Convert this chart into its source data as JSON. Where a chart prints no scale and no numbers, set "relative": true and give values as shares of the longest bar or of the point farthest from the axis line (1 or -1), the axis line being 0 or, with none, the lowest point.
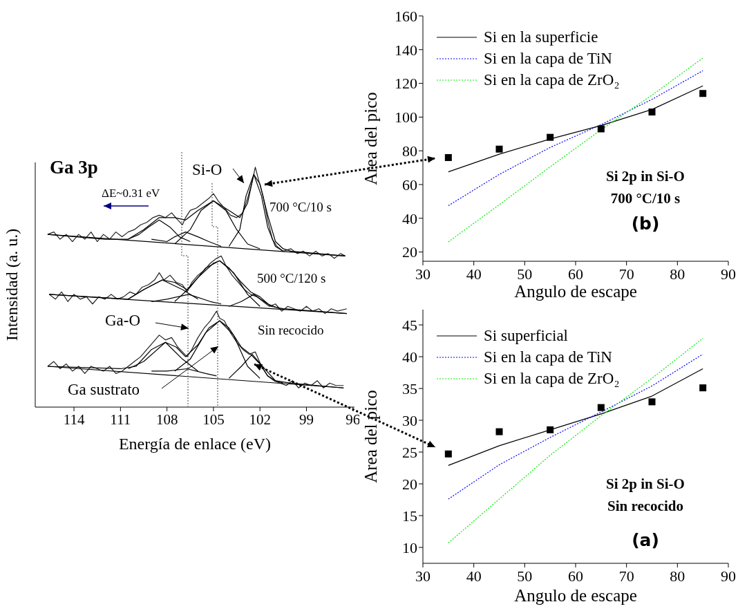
{
  "chart_data": [
    {
      "type": "line",
      "relative": true,
      "xlabel": "Energía de enlace (eV)",
      "ylabel": "Intensidad (a. u.)",
      "xlim": [
        116.5,
        95.9
      ],
      "xticks": [
        114,
        111,
        108,
        105,
        102,
        99,
        96
      ],
      "tick_labels": "x",
      "annotations": [
        "Ga 3p",
        "Si-O",
        "ΔE~0.31 eV",
        "700 °C/10 s",
        "500 °C/120 s",
        "Ga-O",
        "Sin recocido",
        "Ga sustrato"
      ],
      "series": [
        {
          "color": "#222222",
          "x": [
            115.7,
            115.3,
            114.9,
            114.5,
            114.1,
            113.7,
            113.3,
            112.9,
            112.5,
            112.1,
            111.7,
            111.3,
            110.9,
            110.5,
            110.1,
            109.7,
            109.3,
            108.9,
            108.5,
            108.1,
            107.7,
            107.3,
            107.0,
            106.8,
            106.5,
            106.1,
            105.7,
            105.3,
            105.0,
            104.7,
            104.3,
            103.9,
            103.5,
            103.1,
            102.8,
            102.5,
            102.3,
            102.1,
            101.8,
            101.5,
            101.2,
            100.9,
            100.5,
            100.0,
            99.6,
            99.2,
            98.8,
            98.4,
            98.0,
            97.6,
            97.2,
            96.8,
            96.5
          ],
          "values": [
            0.72,
            0.73,
            0.7,
            0.72,
            0.69,
            0.72,
            0.7,
            0.73,
            0.69,
            0.72,
            0.7,
            0.73,
            0.71,
            0.73,
            0.74,
            0.76,
            0.77,
            0.79,
            0.8,
            0.79,
            0.81,
            0.78,
            0.76,
            0.79,
            0.82,
            0.83,
            0.85,
            0.87,
            0.89,
            0.86,
            0.83,
            0.8,
            0.79,
            0.81,
            0.87,
            0.94,
            1.0,
            0.95,
            0.88,
            0.78,
            0.7,
            0.67,
            0.65,
            0.66,
            0.64,
            0.65,
            0.63,
            0.65,
            0.63,
            0.64,
            0.62,
            0.64,
            0.63
          ]
        },
        {
          "color": "#000000",
          "x": [
            115.7,
            112,
            110.5,
            109.5,
            108.5,
            107.5,
            106.8,
            106,
            105,
            104,
            103.3,
            102.8,
            102.4,
            102,
            101.5,
            101,
            100.5,
            100,
            96.5
          ],
          "values": [
            0.72,
            0.7,
            0.7,
            0.74,
            0.79,
            0.79,
            0.78,
            0.82,
            0.86,
            0.82,
            0.79,
            0.85,
            0.97,
            0.93,
            0.8,
            0.69,
            0.66,
            0.65,
            0.63
          ]
        },
        {
          "color": "#000000",
          "x": [
            115.7,
            96.5
          ],
          "values": [
            0.72,
            0.63
          ]
        },
        {
          "color": "#000000",
          "x": [
            110.5,
            109.8,
            109.2,
            108.5,
            107.8,
            107.2,
            106.5
          ],
          "values": [
            0.7,
            0.72,
            0.75,
            0.78,
            0.75,
            0.71,
            0.69
          ]
        },
        {
          "color": "#000000",
          "x": [
            109,
            108,
            107.5,
            106.8,
            106,
            105.3,
            104.5
          ],
          "values": [
            0.7,
            0.69,
            0.71,
            0.73,
            0.71,
            0.69,
            0.67
          ]
        },
        {
          "color": "#000000",
          "x": [
            107.5,
            106.5,
            105.8,
            105,
            104.2,
            103.5,
            102.8,
            102
          ],
          "values": [
            0.68,
            0.74,
            0.82,
            0.86,
            0.82,
            0.74,
            0.68,
            0.66
          ]
        },
        {
          "color": "#000000",
          "x": [
            104,
            103.3,
            102.9,
            102.4,
            101.9,
            101.5,
            101,
            100.5
          ],
          "values": [
            0.67,
            0.74,
            0.88,
            0.97,
            0.88,
            0.75,
            0.67,
            0.65
          ]
        },
        {
          "color": "#222222",
          "x": [
            115.6,
            115.2,
            114.8,
            114.4,
            114,
            113.6,
            113.2,
            112.8,
            112.4,
            112,
            111.6,
            111.2,
            110.8,
            110.4,
            110,
            109.6,
            109.2,
            108.8,
            108.5,
            108.2,
            107.8,
            107.4,
            107,
            106.7,
            106.4,
            106,
            105.6,
            105.2,
            104.8,
            104.5,
            104.2,
            103.8,
            103.4,
            103,
            102.6,
            102.2,
            101.8,
            101.4,
            101,
            100.6,
            100.2,
            99.8,
            99.4,
            99,
            98.6,
            98.2,
            97.8,
            97.4,
            97,
            96.4
          ],
          "values": [
            0.47,
            0.45,
            0.48,
            0.44,
            0.47,
            0.45,
            0.46,
            0.43,
            0.46,
            0.45,
            0.47,
            0.45,
            0.46,
            0.48,
            0.47,
            0.5,
            0.51,
            0.53,
            0.56,
            0.53,
            0.55,
            0.52,
            0.51,
            0.48,
            0.52,
            0.55,
            0.57,
            0.6,
            0.62,
            0.63,
            0.59,
            0.55,
            0.52,
            0.49,
            0.47,
            0.46,
            0.44,
            0.42,
            0.43,
            0.4,
            0.42,
            0.41,
            0.4,
            0.42,
            0.4,
            0.41,
            0.39,
            0.41,
            0.4,
            0.41
          ]
        },
        {
          "color": "#000000",
          "x": [
            115.6,
            110.5,
            109.5,
            108.3,
            107.5,
            106.7,
            106,
            105,
            104.6,
            104,
            103.2,
            102.6,
            102,
            101.3,
            100.5,
            96.4
          ],
          "values": [
            0.47,
            0.45,
            0.49,
            0.53,
            0.52,
            0.49,
            0.54,
            0.6,
            0.61,
            0.58,
            0.52,
            0.48,
            0.46,
            0.42,
            0.41,
            0.39
          ]
        },
        {
          "color": "#000000",
          "x": [
            115.6,
            96.4
          ],
          "values": [
            0.47,
            0.39
          ]
        },
        {
          "color": "#000000",
          "x": [
            110.5,
            109.5,
            108.3,
            107,
            106
          ],
          "values": [
            0.45,
            0.49,
            0.53,
            0.49,
            0.45
          ]
        },
        {
          "color": "#000000",
          "x": [
            109,
            108,
            106.6,
            105.2,
            104.5
          ],
          "values": [
            0.44,
            0.45,
            0.47,
            0.44,
            0.43
          ]
        },
        {
          "color": "#000000",
          "x": [
            107.5,
            106.5,
            105.5,
            104.6,
            103.7,
            102.8,
            102
          ],
          "values": [
            0.44,
            0.5,
            0.58,
            0.61,
            0.56,
            0.47,
            0.42
          ]
        },
        {
          "color": "#000000",
          "x": [
            104,
            103.2,
            102.4,
            101.5,
            100.7
          ],
          "values": [
            0.42,
            0.44,
            0.47,
            0.43,
            0.41
          ]
        },
        {
          "color": "#222222",
          "x": [
            115.7,
            115.3,
            114.9,
            114.5,
            114.1,
            113.7,
            113.3,
            112.9,
            112.5,
            112.1,
            111.7,
            111.3,
            110.9,
            110.5,
            110.1,
            109.7,
            109.3,
            108.9,
            108.5,
            108.1,
            107.7,
            107.3,
            107,
            106.7,
            106.4,
            106,
            105.6,
            105.2,
            104.8,
            104.6,
            104.3,
            103.9,
            103.5,
            103.1,
            102.7,
            102.3,
            101.9,
            101.5,
            101.1,
            100.7,
            100.3,
            99.9,
            99.5,
            99.1,
            98.7,
            98.3,
            97.9,
            97.5,
            97.1,
            96.6
          ],
          "values": [
            0.17,
            0.19,
            0.16,
            0.18,
            0.15,
            0.17,
            0.14,
            0.17,
            0.16,
            0.15,
            0.17,
            0.14,
            0.15,
            0.17,
            0.19,
            0.21,
            0.24,
            0.27,
            0.3,
            0.28,
            0.29,
            0.25,
            0.23,
            0.21,
            0.24,
            0.29,
            0.33,
            0.36,
            0.4,
            0.37,
            0.36,
            0.31,
            0.27,
            0.24,
            0.22,
            0.23,
            0.17,
            0.13,
            0.11,
            0.1,
            0.09,
            0.11,
            0.08,
            0.1,
            0.09,
            0.11,
            0.08,
            0.1,
            0.09,
            0.09
          ]
        },
        {
          "color": "#000000",
          "x": [
            115.7,
            111,
            110,
            109,
            108.1,
            107.4,
            106.8,
            106,
            105.3,
            104.6,
            104,
            103.2,
            102.6,
            102,
            101.5,
            101,
            100,
            96.6
          ],
          "values": [
            0.17,
            0.16,
            0.17,
            0.24,
            0.27,
            0.25,
            0.21,
            0.26,
            0.33,
            0.36,
            0.33,
            0.25,
            0.22,
            0.18,
            0.13,
            0.11,
            0.1,
            0.08
          ]
        },
        {
          "color": "#000000",
          "x": [
            115.7,
            96.6
          ],
          "values": [
            0.17,
            0.08
          ]
        },
        {
          "color": "#000000",
          "x": [
            110.5,
            109.5,
            108.1,
            107,
            106
          ],
          "values": [
            0.16,
            0.19,
            0.27,
            0.2,
            0.15
          ]
        },
        {
          "color": "#000000",
          "x": [
            109,
            108,
            106.7,
            105.5,
            104.8
          ],
          "values": [
            0.15,
            0.15,
            0.16,
            0.14,
            0.13
          ]
        },
        {
          "color": "#000000",
          "x": [
            107.5,
            106.5,
            105.5,
            104.6,
            103.7,
            102.8,
            102
          ],
          "values": [
            0.15,
            0.2,
            0.31,
            0.36,
            0.3,
            0.17,
            0.12
          ]
        },
        {
          "color": "#000000",
          "x": [
            104,
            103.2,
            102.5,
            101.7,
            101,
            100.5
          ],
          "values": [
            0.12,
            0.17,
            0.22,
            0.16,
            0.11,
            0.1
          ]
        }
      ]
    },
    {
      "type": "line",
      "xlabel": "Angulo de escape",
      "ylabel": "Area del pico",
      "xlim": [
        30,
        90
      ],
      "xticks": [
        30,
        40,
        50,
        60,
        70,
        80,
        90
      ],
      "ylim": [
        14.5,
        160
      ],
      "yticks": [
        20,
        40,
        60,
        80,
        100,
        120,
        140,
        160
      ],
      "legend": "top left",
      "annotations": [
        "Si 2p in Si-O",
        "700 °C/10 s",
        "(b)"
      ],
      "x": [
        35,
        45,
        55,
        65,
        75,
        85
      ],
      "series": [
        {
          "type": "scatter",
          "color": "#000000",
          "marker": "square",
          "values": [
            76,
            81,
            88,
            93,
            103,
            114
          ]
        },
        {
          "name": "Si en la superficie",
          "color": "#000000",
          "line_style": "solid",
          "values": [
            67.5,
            78,
            87,
            95,
            104.5,
            118.5
          ]
        },
        {
          "name": "Si en la capa de TiN",
          "color": "#0000ff",
          "line_style": "dotted",
          "values": [
            47.5,
            66,
            82,
            95.5,
            110.5,
            127.5
          ]
        },
        {
          "name": "Si en la capa de ZrO₂",
          "color": "#00ee00",
          "line_style": "dotted",
          "values": [
            26,
            48,
            70.5,
            92.5,
            113,
            135
          ]
        }
      ]
    },
    {
      "type": "line",
      "xlabel": "Angulo de escape",
      "ylabel": "Area del pico",
      "xlim": [
        30,
        90
      ],
      "xticks": [
        30,
        40,
        50,
        60,
        70,
        80,
        90
      ],
      "ylim": [
        7.5,
        47.4
      ],
      "yticks": [
        10,
        15,
        20,
        25,
        30,
        35,
        40,
        45
      ],
      "legend": "top left",
      "annotations": [
        "Si 2p in Si-O",
        "Sin recocido",
        "(a)"
      ],
      "x": [
        35,
        45,
        55,
        65,
        75,
        85
      ],
      "series": [
        {
          "type": "scatter",
          "color": "#000000",
          "marker": "square",
          "values": [
            24.7,
            28.2,
            28.5,
            32,
            32.9,
            35.1
          ]
        },
        {
          "name": "Si superficial",
          "color": "#000000",
          "line_style": "solid",
          "values": [
            22.9,
            26,
            28.5,
            31,
            33.8,
            38.1
          ]
        },
        {
          "name": "Si en la capa de TiN",
          "color": "#0000ff",
          "line_style": "dotted",
          "values": [
            17.6,
            23,
            27.3,
            31.3,
            35.4,
            40.4
          ]
        },
        {
          "name": "Si en la capa de ZrO₂",
          "color": "#00ee00",
          "line_style": "dotted",
          "values": [
            10.7,
            17.6,
            24.5,
            30.7,
            36.6,
            42.9
          ]
        }
      ]
    }
  ]
}
